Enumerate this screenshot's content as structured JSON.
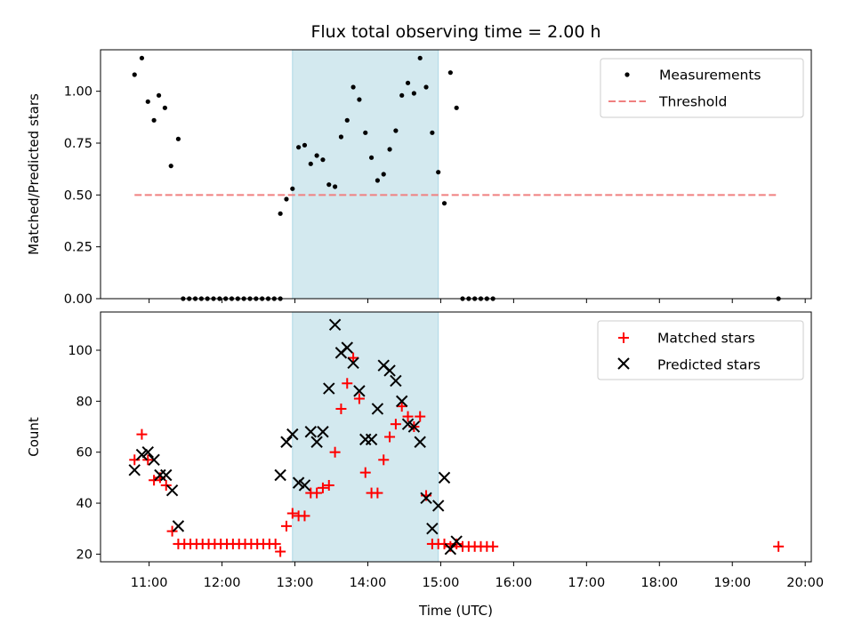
{
  "chart_data": [
    {
      "type": "scatter",
      "title": "Flux total observing time = 2.00 h",
      "ylabel": "Matched/Predicted stars",
      "xlim": [
        "10:20",
        "20:05"
      ],
      "ylim": [
        0,
        1.2
      ],
      "yticks": [
        "0.00",
        "0.25",
        "0.50",
        "0.75",
        "1.00"
      ],
      "shaded_region": {
        "x_start": "12:58",
        "x_end": "14:58",
        "color": "#d3e9ef"
      },
      "legend": {
        "placement": "top-right",
        "entries": [
          "Measurements",
          "Threshold"
        ]
      },
      "series": [
        {
          "name": "Measurements",
          "marker": "dot",
          "color": "#000000",
          "points": [
            [
              "10:48",
              1.08
            ],
            [
              "10:54",
              1.16
            ],
            [
              "10:59",
              0.95
            ],
            [
              "11:04",
              0.86
            ],
            [
              "11:08",
              0.98
            ],
            [
              "11:13",
              0.92
            ],
            [
              "11:18",
              0.64
            ],
            [
              "11:24",
              0.77
            ],
            [
              "11:28",
              0
            ],
            [
              "11:33",
              0
            ],
            [
              "11:38",
              0
            ],
            [
              "11:43",
              0
            ],
            [
              "11:48",
              0
            ],
            [
              "11:53",
              0
            ],
            [
              "11:58",
              0
            ],
            [
              "12:03",
              0
            ],
            [
              "12:08",
              0
            ],
            [
              "12:13",
              0
            ],
            [
              "12:18",
              0
            ],
            [
              "12:23",
              0
            ],
            [
              "12:28",
              0
            ],
            [
              "12:33",
              0
            ],
            [
              "12:38",
              0
            ],
            [
              "12:43",
              0
            ],
            [
              "12:48",
              0
            ],
            [
              "12:48",
              0.41
            ],
            [
              "12:53",
              0.48
            ],
            [
              "12:58",
              0.53
            ],
            [
              "13:03",
              0.73
            ],
            [
              "13:08",
              0.74
            ],
            [
              "13:13",
              0.65
            ],
            [
              "13:18",
              0.69
            ],
            [
              "13:23",
              0.67
            ],
            [
              "13:28",
              0.55
            ],
            [
              "13:33",
              0.54
            ],
            [
              "13:38",
              0.78
            ],
            [
              "13:43",
              0.86
            ],
            [
              "13:48",
              1.02
            ],
            [
              "13:53",
              0.96
            ],
            [
              "13:58",
              0.8
            ],
            [
              "14:03",
              0.68
            ],
            [
              "14:08",
              0.57
            ],
            [
              "14:13",
              0.6
            ],
            [
              "14:18",
              0.72
            ],
            [
              "14:23",
              0.81
            ],
            [
              "14:28",
              0.98
            ],
            [
              "14:33",
              1.04
            ],
            [
              "14:38",
              0.99
            ],
            [
              "14:43",
              1.16
            ],
            [
              "14:48",
              1.02
            ],
            [
              "14:53",
              0.8
            ],
            [
              "14:58",
              0.61
            ],
            [
              "15:03",
              0.46
            ],
            [
              "15:08",
              1.09
            ],
            [
              "15:13",
              0.92
            ],
            [
              "15:18",
              0
            ],
            [
              "15:23",
              0
            ],
            [
              "15:28",
              0
            ],
            [
              "15:33",
              0
            ],
            [
              "15:38",
              0
            ],
            [
              "15:43",
              0
            ],
            [
              "19:38",
              0
            ]
          ]
        },
        {
          "name": "Threshold",
          "style": "dashed",
          "color": "#f08080",
          "points": [
            [
              "10:48",
              0.5
            ],
            [
              "19:38",
              0.5
            ]
          ]
        }
      ]
    },
    {
      "type": "scatter",
      "title": "",
      "xlabel": "Time (UTC)",
      "ylabel": "Count",
      "xlim": [
        "10:20",
        "20:05"
      ],
      "ylim": [
        17,
        115
      ],
      "xticks": [
        "11:00",
        "12:00",
        "13:00",
        "14:00",
        "15:00",
        "16:00",
        "17:00",
        "18:00",
        "19:00",
        "20:00"
      ],
      "yticks": [
        "20",
        "40",
        "60",
        "80",
        "100"
      ],
      "shaded_region": {
        "x_start": "12:58",
        "x_end": "14:58",
        "color": "#d3e9ef"
      },
      "legend": {
        "placement": "top-right",
        "entries": [
          "Matched stars",
          "Predicted stars"
        ]
      },
      "series": [
        {
          "name": "Matched stars",
          "marker": "plus",
          "color": "#ff0000",
          "points": [
            [
              "10:48",
              57
            ],
            [
              "10:54",
              67
            ],
            [
              "10:59",
              57
            ],
            [
              "11:04",
              49
            ],
            [
              "11:09",
              50
            ],
            [
              "11:14",
              47
            ],
            [
              "11:19",
              29
            ],
            [
              "11:24",
              24
            ],
            [
              "11:29",
              24
            ],
            [
              "11:34",
              24
            ],
            [
              "11:39",
              24
            ],
            [
              "11:44",
              24
            ],
            [
              "11:49",
              24
            ],
            [
              "11:54",
              24
            ],
            [
              "11:59",
              24
            ],
            [
              "12:04",
              24
            ],
            [
              "12:09",
              24
            ],
            [
              "12:14",
              24
            ],
            [
              "12:19",
              24
            ],
            [
              "12:24",
              24
            ],
            [
              "12:29",
              24
            ],
            [
              "12:34",
              24
            ],
            [
              "12:39",
              24
            ],
            [
              "12:44",
              24
            ],
            [
              "12:48",
              21
            ],
            [
              "12:53",
              31
            ],
            [
              "12:58",
              36
            ],
            [
              "13:03",
              35
            ],
            [
              "13:08",
              35
            ],
            [
              "13:13",
              44
            ],
            [
              "13:18",
              44
            ],
            [
              "13:23",
              46
            ],
            [
              "13:28",
              47
            ],
            [
              "13:33",
              60
            ],
            [
              "13:38",
              77
            ],
            [
              "13:43",
              87
            ],
            [
              "13:48",
              97
            ],
            [
              "13:53",
              81
            ],
            [
              "13:58",
              52
            ],
            [
              "14:03",
              44
            ],
            [
              "14:08",
              44
            ],
            [
              "14:13",
              57
            ],
            [
              "14:18",
              66
            ],
            [
              "14:23",
              71
            ],
            [
              "14:28",
              78
            ],
            [
              "14:33",
              74
            ],
            [
              "14:38",
              70
            ],
            [
              "14:43",
              74
            ],
            [
              "14:48",
              43
            ],
            [
              "14:53",
              24
            ],
            [
              "14:58",
              24
            ],
            [
              "15:03",
              24
            ],
            [
              "15:08",
              23
            ],
            [
              "15:13",
              24
            ],
            [
              "15:18",
              23
            ],
            [
              "15:23",
              23
            ],
            [
              "15:28",
              23
            ],
            [
              "15:33",
              23
            ],
            [
              "15:38",
              23
            ],
            [
              "15:43",
              23
            ],
            [
              "19:38",
              23
            ]
          ]
        },
        {
          "name": "Predicted stars",
          "marker": "x",
          "color": "#000000",
          "points": [
            [
              "10:48",
              53
            ],
            [
              "10:54",
              59
            ],
            [
              "10:59",
              60
            ],
            [
              "11:04",
              57
            ],
            [
              "11:09",
              51
            ],
            [
              "11:14",
              51
            ],
            [
              "11:19",
              45
            ],
            [
              "11:24",
              31
            ],
            [
              "12:48",
              51
            ],
            [
              "12:53",
              64
            ],
            [
              "12:58",
              67
            ],
            [
              "13:03",
              48
            ],
            [
              "13:08",
              47
            ],
            [
              "13:13",
              68
            ],
            [
              "13:18",
              64
            ],
            [
              "13:23",
              68
            ],
            [
              "13:28",
              85
            ],
            [
              "13:33",
              110
            ],
            [
              "13:38",
              99
            ],
            [
              "13:43",
              101
            ],
            [
              "13:48",
              95
            ],
            [
              "13:53",
              84
            ],
            [
              "13:58",
              65
            ],
            [
              "14:03",
              65
            ],
            [
              "14:08",
              77
            ],
            [
              "14:13",
              94
            ],
            [
              "14:18",
              92
            ],
            [
              "14:23",
              88
            ],
            [
              "14:28",
              80
            ],
            [
              "14:33",
              71
            ],
            [
              "14:38",
              70
            ],
            [
              "14:43",
              64
            ],
            [
              "14:48",
              42
            ],
            [
              "14:53",
              30
            ],
            [
              "14:58",
              39
            ],
            [
              "15:03",
              50
            ],
            [
              "15:08",
              22
            ],
            [
              "15:13",
              25
            ]
          ]
        }
      ]
    }
  ]
}
